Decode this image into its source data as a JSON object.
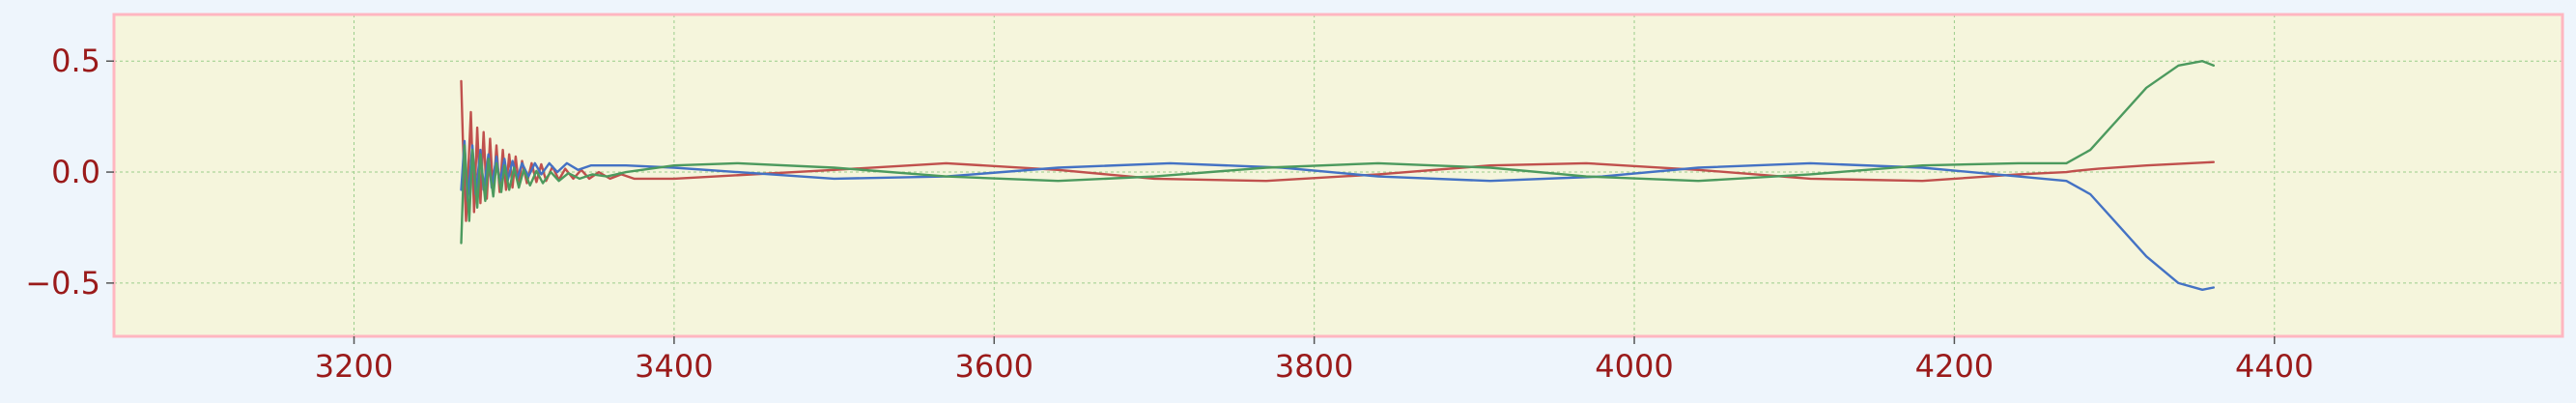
{
  "chart_data": {
    "type": "line",
    "title": "",
    "xlabel": "",
    "ylabel": "",
    "xlim": [
      3050,
      4580
    ],
    "ylim": [
      -0.74,
      0.71
    ],
    "x_ticks": [
      3200,
      3400,
      3600,
      3800,
      4000,
      4200,
      4400
    ],
    "x_tick_labels": [
      "3200",
      "3400",
      "3600",
      "3800",
      "4000",
      "4200",
      "4400"
    ],
    "y_ticks": [
      0.5,
      0.0,
      -0.5
    ],
    "y_tick_labels": [
      "0.5",
      "0.0",
      "−0.5"
    ],
    "grid": true,
    "legend": "none",
    "colors": {
      "plot_background": "#f5f5dc",
      "figure_background": "#eef5fc",
      "spines": "#ffb6c1",
      "grid": "#9acd8a",
      "tick_labels": "#9a1a1a"
    },
    "series": [
      {
        "color": "#c0504d",
        "x": [
          3267,
          3268,
          3270,
          3273,
          3275,
          3277,
          3279,
          3281,
          3283,
          3285,
          3287,
          3289,
          3291,
          3293,
          3295,
          3297,
          3299,
          3301,
          3303,
          3305,
          3308,
          3311,
          3314,
          3317,
          3320,
          3324,
          3328,
          3332,
          3337,
          3342,
          3347,
          3353,
          3360,
          3367,
          3375,
          3385,
          3400,
          3500,
          3570,
          3640,
          3700,
          3770,
          3840,
          3910,
          3970,
          4040,
          4110,
          4180,
          4240,
          4270,
          4275,
          4290,
          4320,
          4362
        ],
        "y": [
          0.41,
          0.15,
          -0.22,
          0.27,
          -0.18,
          0.2,
          -0.14,
          0.18,
          -0.12,
          0.15,
          -0.1,
          0.12,
          -0.09,
          0.1,
          -0.08,
          0.08,
          -0.07,
          0.07,
          -0.06,
          0.05,
          -0.05,
          0.04,
          -0.045,
          0.035,
          -0.04,
          0.025,
          -0.035,
          0.015,
          -0.03,
          0.01,
          -0.03,
          0.0,
          -0.03,
          -0.01,
          -0.03,
          -0.03,
          -0.03,
          0.01,
          0.04,
          0.01,
          -0.03,
          -0.04,
          -0.01,
          0.03,
          0.04,
          0.01,
          -0.03,
          -0.04,
          -0.01,
          0.0,
          0.005,
          0.015,
          0.03,
          0.045
        ]
      },
      {
        "color": "#4472c4",
        "x": [
          3267,
          3269,
          3271,
          3274,
          3276,
          3279,
          3281,
          3284,
          3286,
          3289,
          3291,
          3294,
          3296,
          3299,
          3302,
          3305,
          3309,
          3313,
          3317,
          3322,
          3327,
          3333,
          3340,
          3348,
          3358,
          3370,
          3400,
          3440,
          3500,
          3570,
          3640,
          3710,
          3780,
          3840,
          3910,
          3980,
          4040,
          4110,
          4180,
          4240,
          4270,
          4285,
          4300,
          4320,
          4340,
          4355,
          4362
        ],
        "y": [
          -0.08,
          0.14,
          -0.13,
          0.12,
          -0.1,
          0.1,
          -0.08,
          0.08,
          -0.07,
          0.07,
          -0.05,
          0.06,
          -0.04,
          0.05,
          -0.03,
          0.04,
          -0.02,
          0.04,
          -0.01,
          0.04,
          0.0,
          0.04,
          0.01,
          0.03,
          0.03,
          0.03,
          0.02,
          0.0,
          -0.03,
          -0.02,
          0.02,
          0.04,
          0.02,
          -0.02,
          -0.04,
          -0.02,
          0.02,
          0.04,
          0.02,
          -0.02,
          -0.04,
          -0.1,
          -0.22,
          -0.38,
          -0.5,
          -0.53,
          -0.52
        ]
      },
      {
        "color": "#4c9a5e",
        "x": [
          3267,
          3269,
          3272,
          3274,
          3277,
          3279,
          3282,
          3284,
          3287,
          3289,
          3292,
          3294,
          3297,
          3300,
          3303,
          3306,
          3310,
          3314,
          3318,
          3323,
          3328,
          3334,
          3341,
          3349,
          3358,
          3370,
          3400,
          3440,
          3500,
          3570,
          3640,
          3700,
          3770,
          3840,
          3910,
          3970,
          4040,
          4110,
          4180,
          4240,
          4270,
          4285,
          4300,
          4320,
          4340,
          4355,
          4362
        ],
        "y": [
          -0.32,
          0.12,
          -0.22,
          0.1,
          -0.16,
          0.08,
          -0.13,
          0.06,
          -0.11,
          0.04,
          -0.09,
          0.03,
          -0.08,
          0.02,
          -0.07,
          0.01,
          -0.06,
          0.005,
          -0.05,
          0.0,
          -0.04,
          -0.005,
          -0.03,
          -0.01,
          -0.02,
          0.0,
          0.03,
          0.04,
          0.02,
          -0.02,
          -0.04,
          -0.02,
          0.02,
          0.04,
          0.02,
          -0.02,
          -0.04,
          -0.01,
          0.03,
          0.04,
          0.04,
          0.1,
          0.22,
          0.38,
          0.48,
          0.5,
          0.48
        ]
      }
    ]
  }
}
